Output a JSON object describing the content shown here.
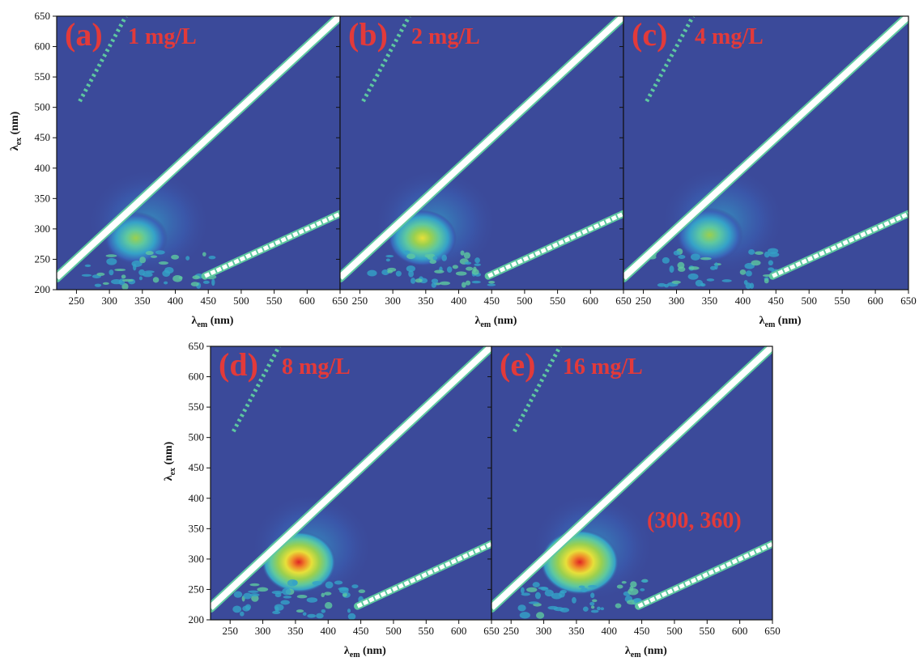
{
  "chart_data": {
    "type": "heatmap",
    "colorscale": [
      "#3b4a9a",
      "#3a63b8",
      "#35a2c8",
      "#5ec8a0",
      "#9bd04e",
      "#e7e03a",
      "#f08a2a",
      "#e02424",
      "#ffffff"
    ],
    "background_color": "#3b4a9a",
    "label_color": "#e23a3a",
    "xlabel": "λem (nm)",
    "ylabel": "λex (nm)",
    "xlim": [
      220,
      650
    ],
    "ylim": [
      200,
      650
    ],
    "xticks": [
      "250",
      "300",
      "350",
      "400",
      "450",
      "500",
      "550",
      "600",
      "650"
    ],
    "yticks": [
      "200",
      "250",
      "300",
      "350",
      "400",
      "450",
      "500",
      "550",
      "600",
      "650"
    ],
    "panels": [
      {
        "letter": "(a)",
        "concentration": "1 mg/L",
        "peak": {
          "em": 340,
          "ex": 285,
          "intensity": 0.45
        },
        "annotation": ""
      },
      {
        "letter": "(b)",
        "concentration": "2 mg/L",
        "peak": {
          "em": 345,
          "ex": 285,
          "intensity": 0.6
        },
        "annotation": ""
      },
      {
        "letter": "(c)",
        "concentration": "4 mg/L",
        "peak": {
          "em": 350,
          "ex": 290,
          "intensity": 0.55
        },
        "annotation": ""
      },
      {
        "letter": "(d)",
        "concentration": "8 mg/L",
        "peak": {
          "em": 355,
          "ex": 295,
          "intensity": 0.85
        },
        "annotation": ""
      },
      {
        "letter": "(e)",
        "concentration": "16 mg/L",
        "peak": {
          "em": 355,
          "ex": 295,
          "intensity": 1.0
        },
        "annotation": "(300, 360)"
      }
    ]
  }
}
